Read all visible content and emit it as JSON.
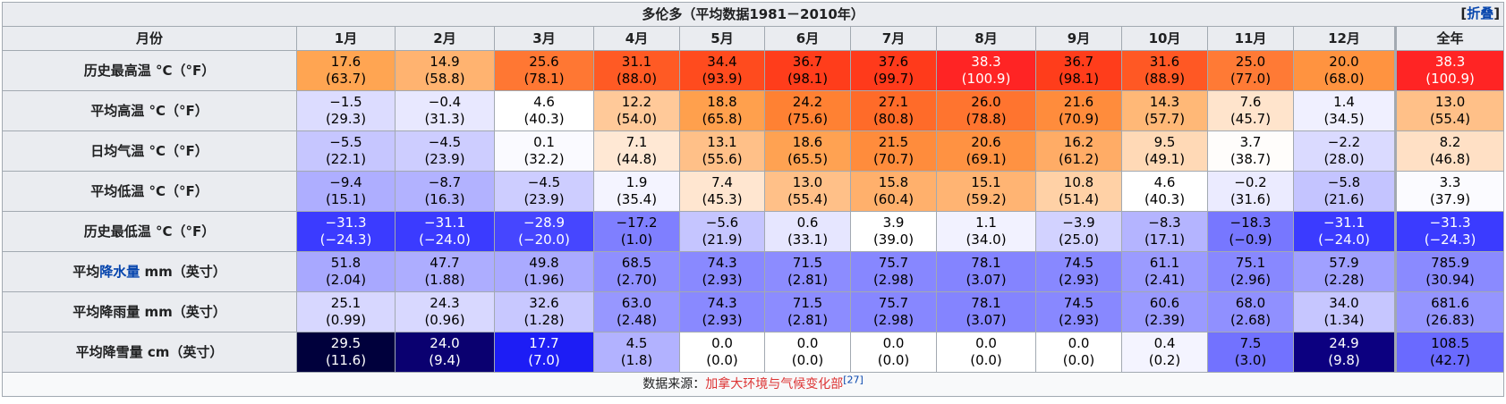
{
  "title": "多伦多（平均数据1981－2010年）",
  "collapse": {
    "open": "[",
    "label": "折叠",
    "close": "]"
  },
  "header": {
    "month_label": "月份",
    "months": [
      "1月",
      "2月",
      "3月",
      "4月",
      "5月",
      "6月",
      "7月",
      "8月",
      "9月",
      "10月",
      "11月",
      "12月"
    ],
    "year_label": "全年"
  },
  "rows": [
    {
      "label_pre": "历史最高温 °C（°F）",
      "label_link": "",
      "label_post": "",
      "cells": [
        {
          "v": "17.6",
          "s": "(63.7)",
          "bg": "#ffa552",
          "fg": "#000000"
        },
        {
          "v": "14.9",
          "s": "(58.8)",
          "bg": "#ffb370",
          "fg": "#000000"
        },
        {
          "v": "25.6",
          "s": "(78.1)",
          "bg": "#ff7733",
          "fg": "#000000"
        },
        {
          "v": "31.1",
          "s": "(88.0)",
          "bg": "#ff5a24",
          "fg": "#000000"
        },
        {
          "v": "34.4",
          "s": "(93.9)",
          "bg": "#ff4b1e",
          "fg": "#000000"
        },
        {
          "v": "36.7",
          "s": "(98.1)",
          "bg": "#ff3d1b",
          "fg": "#000000"
        },
        {
          "v": "37.6",
          "s": "(99.7)",
          "bg": "#ff3a1b",
          "fg": "#000000"
        },
        {
          "v": "38.3",
          "s": "(100.9)",
          "bg": "#ff2424",
          "fg": "#ffffff"
        },
        {
          "v": "36.7",
          "s": "(98.1)",
          "bg": "#ff3d1b",
          "fg": "#000000"
        },
        {
          "v": "31.6",
          "s": "(88.9)",
          "bg": "#ff5824",
          "fg": "#000000"
        },
        {
          "v": "25.0",
          "s": "(77.0)",
          "bg": "#ff7a35",
          "fg": "#000000"
        },
        {
          "v": "20.0",
          "s": "(68.0)",
          "bg": "#ff9340",
          "fg": "#000000"
        },
        {
          "v": "38.3",
          "s": "(100.9)",
          "bg": "#ff2424",
          "fg": "#ffffff"
        }
      ]
    },
    {
      "label_pre": "平均高温 °C（°F）",
      "label_link": "",
      "label_post": "",
      "cells": [
        {
          "v": "−1.5",
          "s": "(29.3)",
          "bg": "#dcdcff",
          "fg": "#000000"
        },
        {
          "v": "−0.4",
          "s": "(31.3)",
          "bg": "#e8e8ff",
          "fg": "#000000"
        },
        {
          "v": "4.6",
          "s": "(40.3)",
          "bg": "#ffffff",
          "fg": "#000000"
        },
        {
          "v": "12.2",
          "s": "(54.0)",
          "bg": "#ffc999",
          "fg": "#000000"
        },
        {
          "v": "18.8",
          "s": "(65.8)",
          "bg": "#ffa04d",
          "fg": "#000000"
        },
        {
          "v": "24.2",
          "s": "(75.6)",
          "bg": "#ff8133",
          "fg": "#000000"
        },
        {
          "v": "27.1",
          "s": "(80.8)",
          "bg": "#ff6b29",
          "fg": "#000000"
        },
        {
          "v": "26.0",
          "s": "(78.8)",
          "bg": "#ff742f",
          "fg": "#000000"
        },
        {
          "v": "21.6",
          "s": "(70.9)",
          "bg": "#ff8c3c",
          "fg": "#000000"
        },
        {
          "v": "14.3",
          "s": "(57.7)",
          "bg": "#ffb877",
          "fg": "#000000"
        },
        {
          "v": "7.6",
          "s": "(45.7)",
          "bg": "#ffe4cc",
          "fg": "#000000"
        },
        {
          "v": "1.4",
          "s": "(34.5)",
          "bg": "#f0f0ff",
          "fg": "#000000"
        },
        {
          "v": "13.0",
          "s": "(55.4)",
          "bg": "#ffc088",
          "fg": "#000000"
        }
      ]
    },
    {
      "label_pre": "日均气温 °C（°F）",
      "label_link": "",
      "label_post": "",
      "cells": [
        {
          "v": "−5.5",
          "s": "(22.1)",
          "bg": "#c6c6ff",
          "fg": "#000000"
        },
        {
          "v": "−4.5",
          "s": "(23.9)",
          "bg": "#cdcdff",
          "fg": "#000000"
        },
        {
          "v": "0.1",
          "s": "(32.2)",
          "bg": "#fafaff",
          "fg": "#000000"
        },
        {
          "v": "7.1",
          "s": "(44.8)",
          "bg": "#ffe8d4",
          "fg": "#000000"
        },
        {
          "v": "13.1",
          "s": "(55.6)",
          "bg": "#ffc088",
          "fg": "#000000"
        },
        {
          "v": "18.6",
          "s": "(65.5)",
          "bg": "#ffa252",
          "fg": "#000000"
        },
        {
          "v": "21.5",
          "s": "(70.7)",
          "bg": "#ff8c3c",
          "fg": "#000000"
        },
        {
          "v": "20.6",
          "s": "(69.1)",
          "bg": "#ff9242",
          "fg": "#000000"
        },
        {
          "v": "16.2",
          "s": "(61.2)",
          "bg": "#ffac66",
          "fg": "#000000"
        },
        {
          "v": "9.5",
          "s": "(49.1)",
          "bg": "#ffd9b6",
          "fg": "#000000"
        },
        {
          "v": "3.7",
          "s": "(38.7)",
          "bg": "#fffdfb",
          "fg": "#000000"
        },
        {
          "v": "−2.2",
          "s": "(28.0)",
          "bg": "#dadaff",
          "fg": "#000000"
        },
        {
          "v": "8.2",
          "s": "(46.8)",
          "bg": "#ffe0c5",
          "fg": "#000000"
        }
      ]
    },
    {
      "label_pre": "平均低温 °C（°F）",
      "label_link": "",
      "label_post": "",
      "cells": [
        {
          "v": "−9.4",
          "s": "(15.1)",
          "bg": "#aeaeff",
          "fg": "#000000"
        },
        {
          "v": "−8.7",
          "s": "(16.3)",
          "bg": "#b2b2ff",
          "fg": "#000000"
        },
        {
          "v": "−4.5",
          "s": "(23.9)",
          "bg": "#cdcdff",
          "fg": "#000000"
        },
        {
          "v": "1.9",
          "s": "(35.4)",
          "bg": "#f4f4ff",
          "fg": "#000000"
        },
        {
          "v": "7.4",
          "s": "(45.3)",
          "bg": "#ffe6d0",
          "fg": "#000000"
        },
        {
          "v": "13.0",
          "s": "(55.4)",
          "bg": "#ffc088",
          "fg": "#000000"
        },
        {
          "v": "15.8",
          "s": "(60.4)",
          "bg": "#ffb06c",
          "fg": "#000000"
        },
        {
          "v": "15.1",
          "s": "(59.2)",
          "bg": "#ffb473",
          "fg": "#000000"
        },
        {
          "v": "10.8",
          "s": "(51.4)",
          "bg": "#ffd1a6",
          "fg": "#000000"
        },
        {
          "v": "4.6",
          "s": "(40.3)",
          "bg": "#ffffff",
          "fg": "#000000"
        },
        {
          "v": "−0.2",
          "s": "(31.6)",
          "bg": "#ebebff",
          "fg": "#000000"
        },
        {
          "v": "−5.8",
          "s": "(21.6)",
          "bg": "#c4c4ff",
          "fg": "#000000"
        },
        {
          "v": "3.3",
          "s": "(37.9)",
          "bg": "#fbfbff",
          "fg": "#000000"
        }
      ]
    },
    {
      "label_pre": "历史最低温 °C（°F）",
      "label_link": "",
      "label_post": "",
      "cells": [
        {
          "v": "−31.3",
          "s": "(−24.3)",
          "bg": "#3b3bff",
          "fg": "#ffffff"
        },
        {
          "v": "−31.1",
          "s": "(−24.0)",
          "bg": "#3b3bff",
          "fg": "#ffffff"
        },
        {
          "v": "−28.9",
          "s": "(−20.0)",
          "bg": "#4646ff",
          "fg": "#ffffff"
        },
        {
          "v": "−17.2",
          "s": "(1.0)",
          "bg": "#7f7fff",
          "fg": "#000000"
        },
        {
          "v": "−5.6",
          "s": "(21.9)",
          "bg": "#c5c5ff",
          "fg": "#000000"
        },
        {
          "v": "0.6",
          "s": "(33.1)",
          "bg": "#e6e6ff",
          "fg": "#000000"
        },
        {
          "v": "3.9",
          "s": "(39.0)",
          "bg": "#ffffff",
          "fg": "#000000"
        },
        {
          "v": "1.1",
          "s": "(34.0)",
          "bg": "#f2f2ff",
          "fg": "#000000"
        },
        {
          "v": "−3.9",
          "s": "(25.0)",
          "bg": "#d2d2ff",
          "fg": "#000000"
        },
        {
          "v": "−8.3",
          "s": "(17.1)",
          "bg": "#b4b4ff",
          "fg": "#000000"
        },
        {
          "v": "−18.3",
          "s": "(−0.9)",
          "bg": "#7777ff",
          "fg": "#000000"
        },
        {
          "v": "−31.1",
          "s": "(−24.0)",
          "bg": "#3b3bff",
          "fg": "#ffffff"
        },
        {
          "v": "−31.3",
          "s": "(−24.3)",
          "bg": "#3b3bff",
          "fg": "#ffffff"
        }
      ]
    },
    {
      "label_pre": "平均",
      "label_link": "降水量",
      "label_post": " mm（英寸）",
      "cells": [
        {
          "v": "51.8",
          "s": "(2.04)",
          "bg": "#a8a8ff",
          "fg": "#000000"
        },
        {
          "v": "47.7",
          "s": "(1.88)",
          "bg": "#adadff",
          "fg": "#000000"
        },
        {
          "v": "49.8",
          "s": "(1.96)",
          "bg": "#aaaaff",
          "fg": "#000000"
        },
        {
          "v": "68.5",
          "s": "(2.70)",
          "bg": "#8f8fff",
          "fg": "#000000"
        },
        {
          "v": "74.3",
          "s": "(2.93)",
          "bg": "#8989ff",
          "fg": "#000000"
        },
        {
          "v": "71.5",
          "s": "(2.81)",
          "bg": "#8c8cff",
          "fg": "#000000"
        },
        {
          "v": "75.7",
          "s": "(2.98)",
          "bg": "#8787ff",
          "fg": "#000000"
        },
        {
          "v": "78.1",
          "s": "(3.07)",
          "bg": "#8484ff",
          "fg": "#000000"
        },
        {
          "v": "74.5",
          "s": "(2.93)",
          "bg": "#8888ff",
          "fg": "#000000"
        },
        {
          "v": "61.1",
          "s": "(2.41)",
          "bg": "#9b9bff",
          "fg": "#000000"
        },
        {
          "v": "75.1",
          "s": "(2.96)",
          "bg": "#8888ff",
          "fg": "#000000"
        },
        {
          "v": "57.9",
          "s": "(2.28)",
          "bg": "#a0a0ff",
          "fg": "#000000"
        },
        {
          "v": "785.9",
          "s": "(30.94)",
          "bg": "#8a8aff",
          "fg": "#000000"
        }
      ]
    },
    {
      "label_pre": "平均降雨量 mm（英寸）",
      "label_link": "",
      "label_post": "",
      "cells": [
        {
          "v": "25.1",
          "s": "(0.99)",
          "bg": "#d7d7ff",
          "fg": "#000000"
        },
        {
          "v": "24.3",
          "s": "(0.96)",
          "bg": "#d8d8ff",
          "fg": "#000000"
        },
        {
          "v": "32.6",
          "s": "(1.28)",
          "bg": "#c8c8ff",
          "fg": "#000000"
        },
        {
          "v": "63.0",
          "s": "(2.48)",
          "bg": "#9797ff",
          "fg": "#000000"
        },
        {
          "v": "74.3",
          "s": "(2.93)",
          "bg": "#8989ff",
          "fg": "#000000"
        },
        {
          "v": "71.5",
          "s": "(2.81)",
          "bg": "#8c8cff",
          "fg": "#000000"
        },
        {
          "v": "75.7",
          "s": "(2.98)",
          "bg": "#8787ff",
          "fg": "#000000"
        },
        {
          "v": "78.1",
          "s": "(3.07)",
          "bg": "#8484ff",
          "fg": "#000000"
        },
        {
          "v": "74.5",
          "s": "(2.93)",
          "bg": "#8888ff",
          "fg": "#000000"
        },
        {
          "v": "60.6",
          "s": "(2.39)",
          "bg": "#9a9aff",
          "fg": "#000000"
        },
        {
          "v": "68.0",
          "s": "(2.68)",
          "bg": "#9090ff",
          "fg": "#000000"
        },
        {
          "v": "34.0",
          "s": "(1.34)",
          "bg": "#c6c6ff",
          "fg": "#000000"
        },
        {
          "v": "681.6",
          "s": "(26.83)",
          "bg": "#9595ff",
          "fg": "#000000"
        }
      ]
    },
    {
      "label_pre": "平均降雪量 cm（英寸）",
      "label_link": "",
      "label_post": "",
      "cells": [
        {
          "v": "29.5",
          "s": "(11.6)",
          "bg": "#00003c",
          "fg": "#ffffff"
        },
        {
          "v": "24.0",
          "s": "(9.4)",
          "bg": "#0a0070",
          "fg": "#ffffff"
        },
        {
          "v": "17.7",
          "s": "(7.0)",
          "bg": "#1d1df5",
          "fg": "#ffffff"
        },
        {
          "v": "4.5",
          "s": "(1.8)",
          "bg": "#b2b2ff",
          "fg": "#000000"
        },
        {
          "v": "0.0",
          "s": "(0.0)",
          "bg": "#ffffff",
          "fg": "#000000"
        },
        {
          "v": "0.0",
          "s": "(0.0)",
          "bg": "#ffffff",
          "fg": "#000000"
        },
        {
          "v": "0.0",
          "s": "(0.0)",
          "bg": "#ffffff",
          "fg": "#000000"
        },
        {
          "v": "0.0",
          "s": "(0.0)",
          "bg": "#ffffff",
          "fg": "#000000"
        },
        {
          "v": "0.0",
          "s": "(0.0)",
          "bg": "#ffffff",
          "fg": "#000000"
        },
        {
          "v": "0.4",
          "s": "(0.2)",
          "bg": "#f4f4ff",
          "fg": "#000000"
        },
        {
          "v": "7.5",
          "s": "(3.0)",
          "bg": "#7272ff",
          "fg": "#000000"
        },
        {
          "v": "24.9",
          "s": "(9.8)",
          "bg": "#0c0080",
          "fg": "#ffffff"
        },
        {
          "v": "108.5",
          "s": "(42.7)",
          "bg": "#6a6aff",
          "fg": "#000000"
        }
      ]
    }
  ],
  "source": {
    "label": "数据来源：",
    "link": "加拿大环境与气候变化部",
    "ref": "[27]"
  }
}
